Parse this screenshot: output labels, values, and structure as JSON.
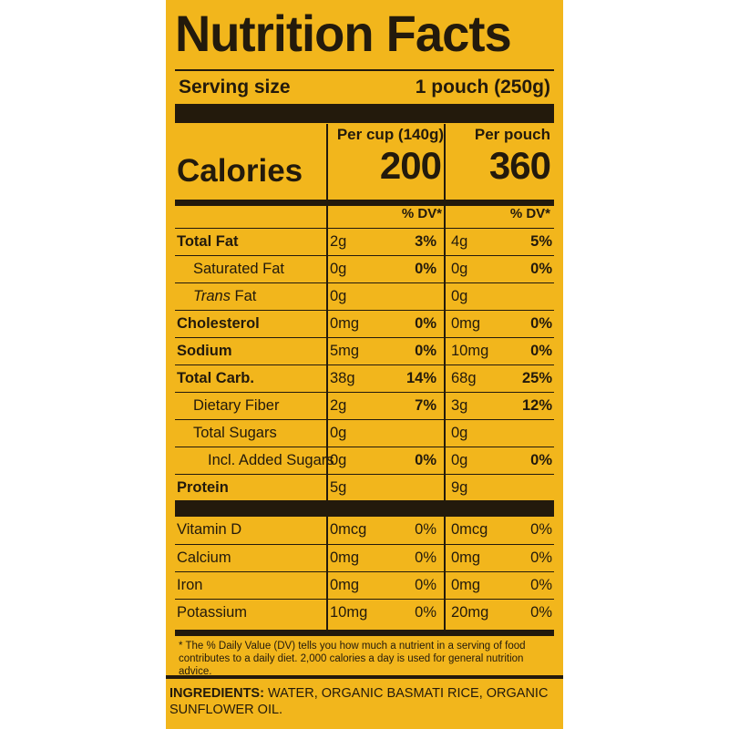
{
  "title": "Nutrition Facts",
  "serving": {
    "label": "Serving size",
    "value": "1 pouch (250g)"
  },
  "columns": {
    "cup_header": "Per cup (140g)",
    "pouch_header": "Per pouch"
  },
  "calories": {
    "label": "Calories",
    "cup": "200",
    "pouch": "360"
  },
  "dv_header": "% DV*",
  "nutrients": [
    {
      "name": "Total Fat",
      "cup_amount": "2g",
      "cup_dv": "3%",
      "pouch_amount": "4g",
      "pouch_dv": "5%"
    },
    {
      "name": "Saturated Fat",
      "cup_amount": "0g",
      "cup_dv": "0%",
      "pouch_amount": "0g",
      "pouch_dv": "0%"
    },
    {
      "name_italic": "Trans",
      "name_rest": " Fat",
      "cup_amount": "0g",
      "cup_dv": "",
      "pouch_amount": "0g",
      "pouch_dv": ""
    },
    {
      "name": "Cholesterol",
      "cup_amount": "0mg",
      "cup_dv": "0%",
      "pouch_amount": "0mg",
      "pouch_dv": "0%"
    },
    {
      "name": "Sodium",
      "cup_amount": "5mg",
      "cup_dv": "0%",
      "pouch_amount": "10mg",
      "pouch_dv": "0%"
    },
    {
      "name": "Total Carb.",
      "cup_amount": "38g",
      "cup_dv": "14%",
      "pouch_amount": "68g",
      "pouch_dv": "25%"
    },
    {
      "name": "Dietary Fiber",
      "cup_amount": "2g",
      "cup_dv": "7%",
      "pouch_amount": "3g",
      "pouch_dv": "12%"
    },
    {
      "name": "Total Sugars",
      "cup_amount": "0g",
      "cup_dv": "",
      "pouch_amount": "0g",
      "pouch_dv": ""
    },
    {
      "name": "Incl. Added Sugars",
      "cup_amount": "0g",
      "cup_dv": "0%",
      "pouch_amount": "0g",
      "pouch_dv": "0%"
    },
    {
      "name": "Protein",
      "cup_amount": "5g",
      "cup_dv": "",
      "pouch_amount": "9g",
      "pouch_dv": ""
    }
  ],
  "vitamins": [
    {
      "name": "Vitamin D",
      "cup_amount": "0mcg",
      "cup_dv": "0%",
      "pouch_amount": "0mcg",
      "pouch_dv": "0%"
    },
    {
      "name": "Calcium",
      "cup_amount": "0mg",
      "cup_dv": "0%",
      "pouch_amount": "0mg",
      "pouch_dv": "0%"
    },
    {
      "name": "Iron",
      "cup_amount": "0mg",
      "cup_dv": "0%",
      "pouch_amount": "0mg",
      "pouch_dv": "0%"
    },
    {
      "name": "Potassium",
      "cup_amount": "10mg",
      "cup_dv": "0%",
      "pouch_amount": "20mg",
      "pouch_dv": "0%"
    }
  ],
  "footnote": "* The % Daily Value (DV) tells you how much a nutrient in a serving of food contributes to a daily diet. 2,000 calories a day is used for general nutrition advice.",
  "ingredients": {
    "label": "INGREDIENTS:",
    "text": "WATER, ORGANIC BASMATI RICE, ORGANIC SUNFLOWER OIL."
  },
  "colors": {
    "panel": "#f2b61c",
    "ink": "#231a0c"
  }
}
